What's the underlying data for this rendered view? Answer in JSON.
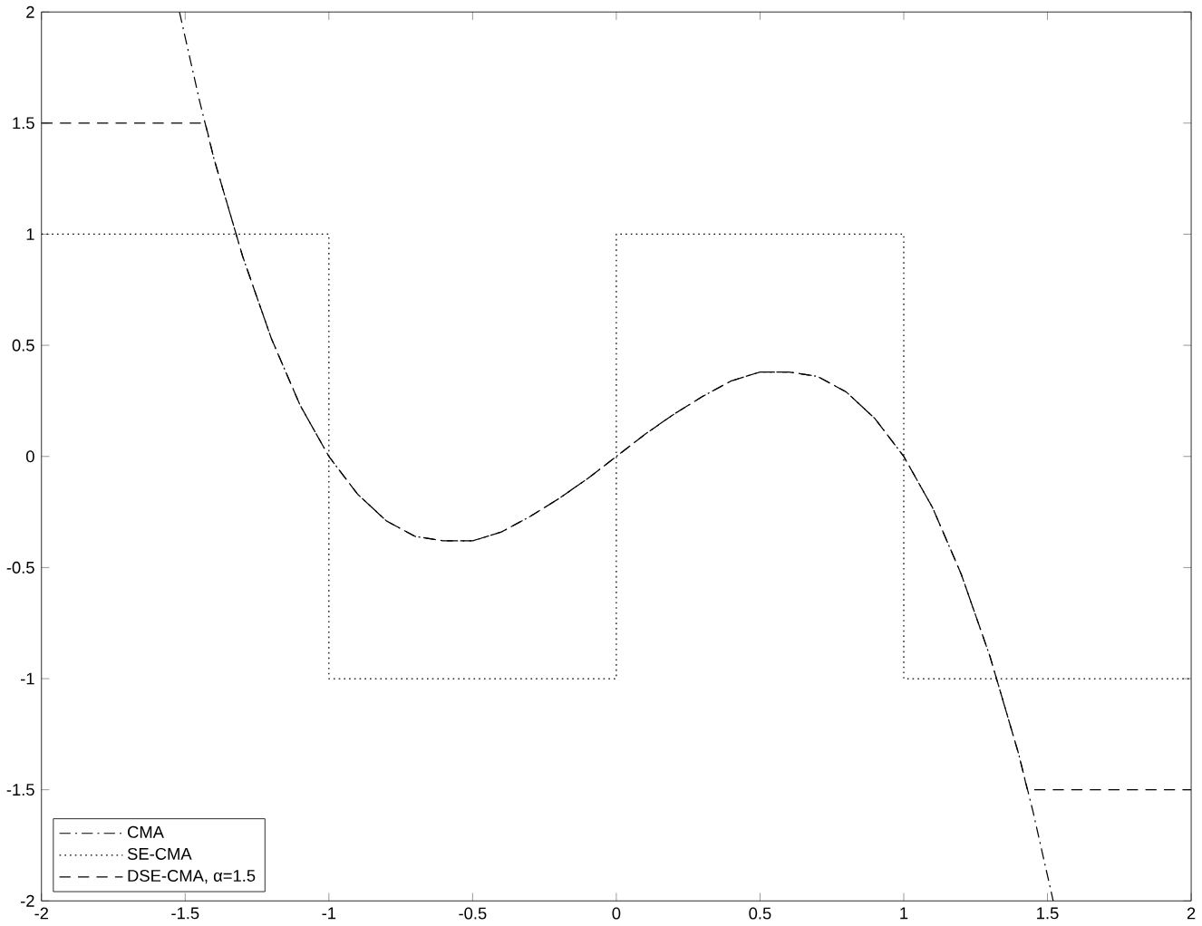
{
  "chart_data": {
    "type": "line",
    "xlim": [
      -2,
      2
    ],
    "ylim": [
      -2,
      2
    ],
    "xticks": [
      -2,
      -1.5,
      -1,
      -0.5,
      0,
      0.5,
      1,
      1.5,
      2
    ],
    "yticks": [
      -2,
      -1.5,
      -1,
      -0.5,
      0,
      0.5,
      1,
      1.5,
      2
    ],
    "legend": "bottom left",
    "grid": false,
    "marker": "none",
    "series": [
      {
        "name": "CMA",
        "color": "#000000",
        "line_style": "dashdot",
        "x": [
          -1.52,
          -1.45,
          -1.4,
          -1.3,
          -1.2,
          -1.1,
          -1.0,
          -0.9,
          -0.8,
          -0.7,
          -0.6,
          -0.5,
          -0.4,
          -0.3,
          -0.2,
          -0.1,
          0,
          0.1,
          0.2,
          0.3,
          0.4,
          0.5,
          0.6,
          0.7,
          0.8,
          0.9,
          1.0,
          1.1,
          1.2,
          1.3,
          1.4,
          1.45,
          1.52
        ],
        "values": [
          2.0,
          1.6,
          1.34,
          0.9,
          0.53,
          0.23,
          0,
          -0.17,
          -0.29,
          -0.36,
          -0.38,
          -0.38,
          -0.34,
          -0.27,
          -0.19,
          -0.1,
          0,
          0.1,
          0.19,
          0.27,
          0.34,
          0.38,
          0.38,
          0.36,
          0.29,
          0.17,
          0,
          -0.23,
          -0.53,
          -0.9,
          -1.34,
          -1.6,
          -2.0
        ]
      },
      {
        "name": "SE-CMA",
        "color": "#000000",
        "line_style": "dotted",
        "x": [
          -2,
          -1,
          -1,
          0,
          0,
          1,
          1,
          2
        ],
        "values": [
          1,
          1,
          -1,
          -1,
          1,
          1,
          -1,
          -1
        ]
      },
      {
        "name": "DSE-CMA, α=1.5",
        "color": "#000000",
        "line_style": "dashed",
        "x": [
          -2,
          -1.43,
          -1.4,
          -1.3,
          -1.2,
          -1.1,
          -1.0,
          -0.9,
          -0.8,
          -0.7,
          -0.6,
          -0.5,
          -0.4,
          -0.3,
          -0.2,
          -0.1,
          0,
          0.1,
          0.2,
          0.3,
          0.4,
          0.5,
          0.6,
          0.7,
          0.8,
          0.9,
          1.0,
          1.1,
          1.2,
          1.3,
          1.4,
          1.43,
          2
        ],
        "values": [
          1.5,
          1.5,
          1.34,
          0.9,
          0.53,
          0.23,
          0,
          -0.17,
          -0.29,
          -0.36,
          -0.38,
          -0.38,
          -0.34,
          -0.27,
          -0.19,
          -0.1,
          0,
          0.1,
          0.19,
          0.27,
          0.34,
          0.38,
          0.38,
          0.36,
          0.29,
          0.17,
          0,
          -0.23,
          -0.53,
          -0.9,
          -1.34,
          -1.5,
          -1.5
        ]
      }
    ]
  }
}
